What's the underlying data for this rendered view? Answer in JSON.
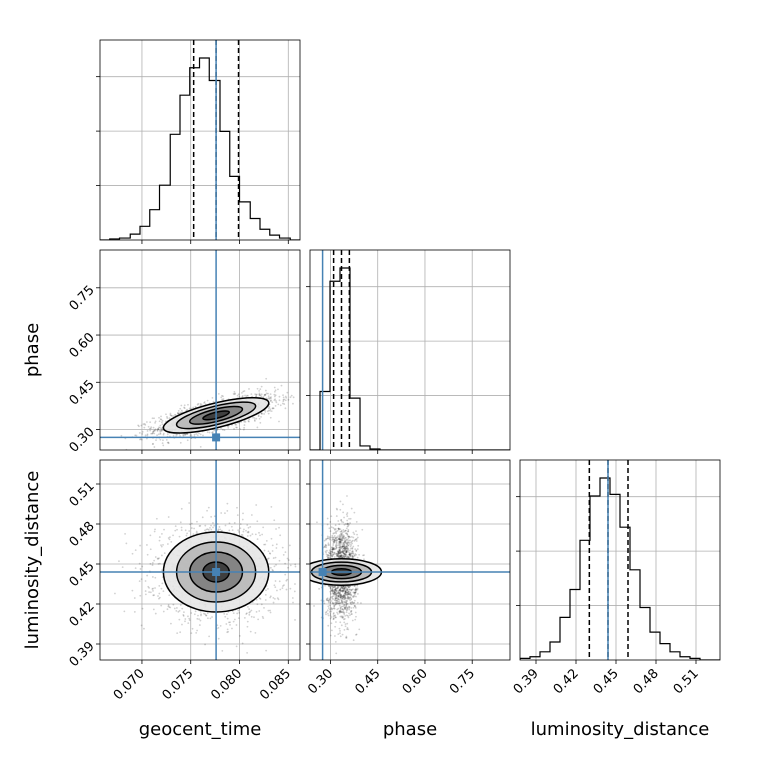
{
  "chart_data": {
    "type": "corner",
    "parameters": [
      "geocent_time",
      "phase",
      "luminosity_distance"
    ],
    "truths": {
      "geocent_time": 0.0776,
      "phase": 0.275,
      "luminosity_distance": 0.444
    },
    "truth_color": "#4682b4",
    "ranges": {
      "geocent_time": [
        0.0657,
        0.0862
      ],
      "phase": [
        0.235,
        0.87
      ],
      "luminosity_distance": [
        0.378,
        0.528
      ]
    },
    "ticks": {
      "geocent_time": [
        "0.070",
        "0.075",
        "0.080",
        "0.085"
      ],
      "phase": [
        "0.30",
        "0.45",
        "0.60",
        "0.75"
      ],
      "luminosity_distance": [
        "0.39",
        "0.42",
        "0.45",
        "0.48",
        "0.51"
      ]
    },
    "quantiles": {
      "geocent_time": [
        0.0753,
        0.0776,
        0.0799
      ],
      "phase": [
        0.31,
        0.335,
        0.36
      ],
      "luminosity_distance": [
        0.43,
        0.444,
        0.459
      ]
    },
    "histograms": {
      "geocent_time": {
        "bin_edges": [
          0.0657,
          0.0667,
          0.0677,
          0.0688,
          0.0698,
          0.0708,
          0.0718,
          0.0729,
          0.0739,
          0.0749,
          0.0759,
          0.0769,
          0.078,
          0.079,
          0.08,
          0.0811,
          0.0821,
          0.0831,
          0.0841,
          0.0852,
          0.0862
        ],
        "counts": [
          0,
          1,
          2,
          6,
          14,
          31,
          56,
          108,
          148,
          176,
          186,
          163,
          111,
          65,
          39,
          22,
          11,
          5,
          2,
          0
        ]
      },
      "phase": {
        "bin_edges": [
          0.235,
          0.2668,
          0.2985,
          0.3303,
          0.362,
          0.3938,
          0.4255,
          0.4573,
          0.489,
          0.5208,
          0.5525,
          0.5843,
          0.616,
          0.6478,
          0.6795,
          0.7113,
          0.743,
          0.7748,
          0.8065,
          0.8383,
          0.87
        ],
        "counts": [
          0,
          115,
          332,
          358,
          102,
          8,
          2,
          0,
          0,
          0,
          0,
          0,
          0,
          0,
          0,
          0,
          0,
          0,
          0,
          0
        ]
      },
      "luminosity_distance": {
        "bin_edges": [
          0.378,
          0.3855,
          0.393,
          0.4005,
          0.408,
          0.4155,
          0.423,
          0.4305,
          0.438,
          0.4455,
          0.453,
          0.4605,
          0.468,
          0.4755,
          0.483,
          0.4905,
          0.498,
          0.5055,
          0.513,
          0.5205,
          0.528
        ],
        "counts": [
          1,
          2,
          5,
          11,
          26,
          43,
          73,
          100,
          111,
          101,
          81,
          55,
          32,
          17,
          10,
          5,
          2,
          1,
          0,
          0
        ]
      }
    },
    "posterior_2d": [
      {
        "x": "geocent_time",
        "y": "phase",
        "mean": [
          0.0776,
          0.345
        ],
        "sd": [
          0.0027,
          0.028
        ],
        "corr": 0.7,
        "contour_levels": [
          "0.5 sigma",
          "1 sigma",
          "1.5 sigma",
          "2 sigma"
        ]
      },
      {
        "x": "geocent_time",
        "y": "luminosity_distance",
        "mean": [
          0.0776,
          0.444
        ],
        "sd": [
          0.0027,
          0.015
        ],
        "corr": 0,
        "contour_levels": [
          "0.5 sigma",
          "1 sigma",
          "1.5 sigma",
          "2 sigma"
        ]
      },
      {
        "x": "phase",
        "y": "luminosity_distance",
        "mean": [
          0.335,
          0.444
        ],
        "sd": [
          0.021,
          0.015
        ],
        "corr": 0,
        "contour_levels": [
          "0.5 sigma",
          "1 sigma",
          "1.5 sigma",
          "2 sigma"
        ]
      }
    ],
    "grid": true,
    "legend": "none"
  }
}
